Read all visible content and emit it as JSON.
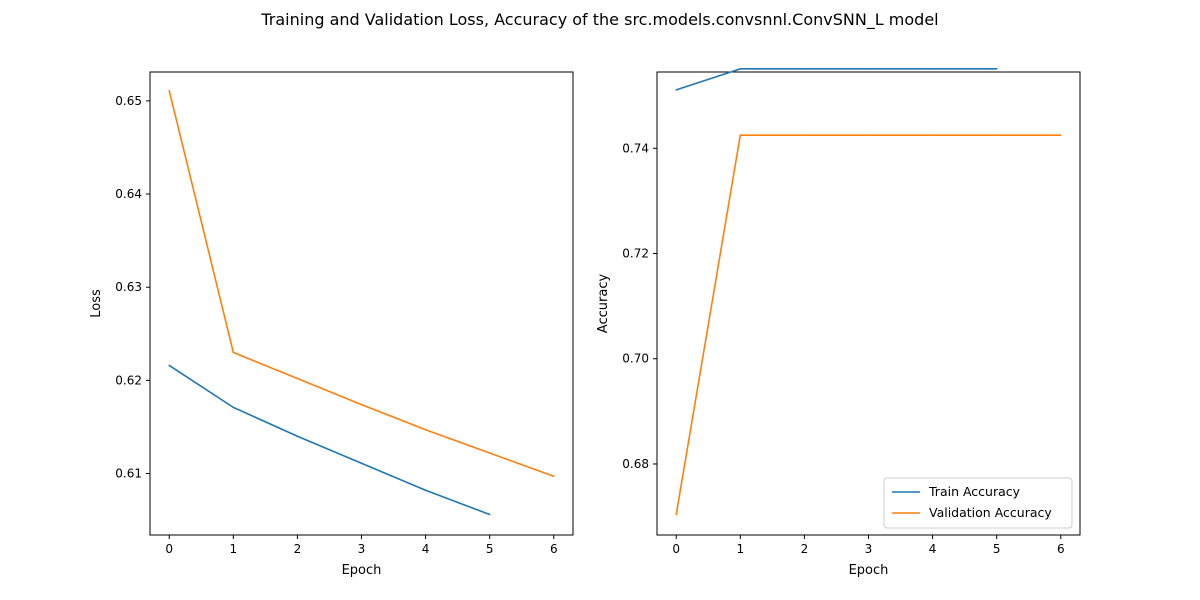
{
  "figure_title": "Training and Validation Loss, Accuracy of the src.models.convsnnl.ConvSNN_L model",
  "colors": {
    "train": "#1f77b4",
    "validation": "#ff7f0e"
  },
  "chart_data": [
    {
      "type": "line",
      "title": "",
      "xlabel": "Epoch",
      "ylabel": "Loss",
      "xlim": [
        -0.3,
        6.3
      ],
      "ylim": [
        0.6034,
        0.6531
      ],
      "xticks": [
        "0",
        "1",
        "2",
        "3",
        "4",
        "5",
        "6"
      ],
      "yticks": [
        "0.61",
        "0.62",
        "0.63",
        "0.64",
        "0.65"
      ],
      "legend": null,
      "grid": false,
      "series": [
        {
          "key": "train",
          "x": [
            0,
            1,
            2,
            3,
            4,
            5
          ],
          "values": [
            0.6216,
            0.6171,
            0.614,
            0.6111,
            0.6082,
            0.6056
          ]
        },
        {
          "key": "validation",
          "x": [
            0,
            1,
            2,
            3,
            4,
            5,
            6
          ],
          "values": [
            0.6511,
            0.623,
            0.6202,
            0.6174,
            0.6147,
            0.6122,
            0.6097
          ]
        }
      ]
    },
    {
      "type": "line",
      "title": "",
      "xlabel": "Epoch",
      "ylabel": "Accuracy",
      "xlim": [
        -0.3,
        6.3
      ],
      "ylim": [
        0.6665,
        0.7545
      ],
      "xticks": [
        "0",
        "1",
        "2",
        "3",
        "4",
        "5",
        "6"
      ],
      "yticks": [
        "0.68",
        "0.70",
        "0.72",
        "0.74"
      ],
      "legend": "lower-right",
      "grid": false,
      "series": [
        {
          "key": "train",
          "name": "Train Accuracy",
          "x": [
            0,
            1,
            2,
            3,
            4,
            5
          ],
          "values": [
            0.7511,
            0.7551,
            0.7551,
            0.7551,
            0.7551,
            0.7551
          ]
        },
        {
          "key": "validation",
          "name": "Validation Accuracy",
          "x": [
            0,
            1,
            2,
            3,
            4,
            5,
            6
          ],
          "values": [
            0.6704,
            0.7425,
            0.7425,
            0.7425,
            0.7425,
            0.7425,
            0.7425
          ]
        }
      ]
    }
  ]
}
